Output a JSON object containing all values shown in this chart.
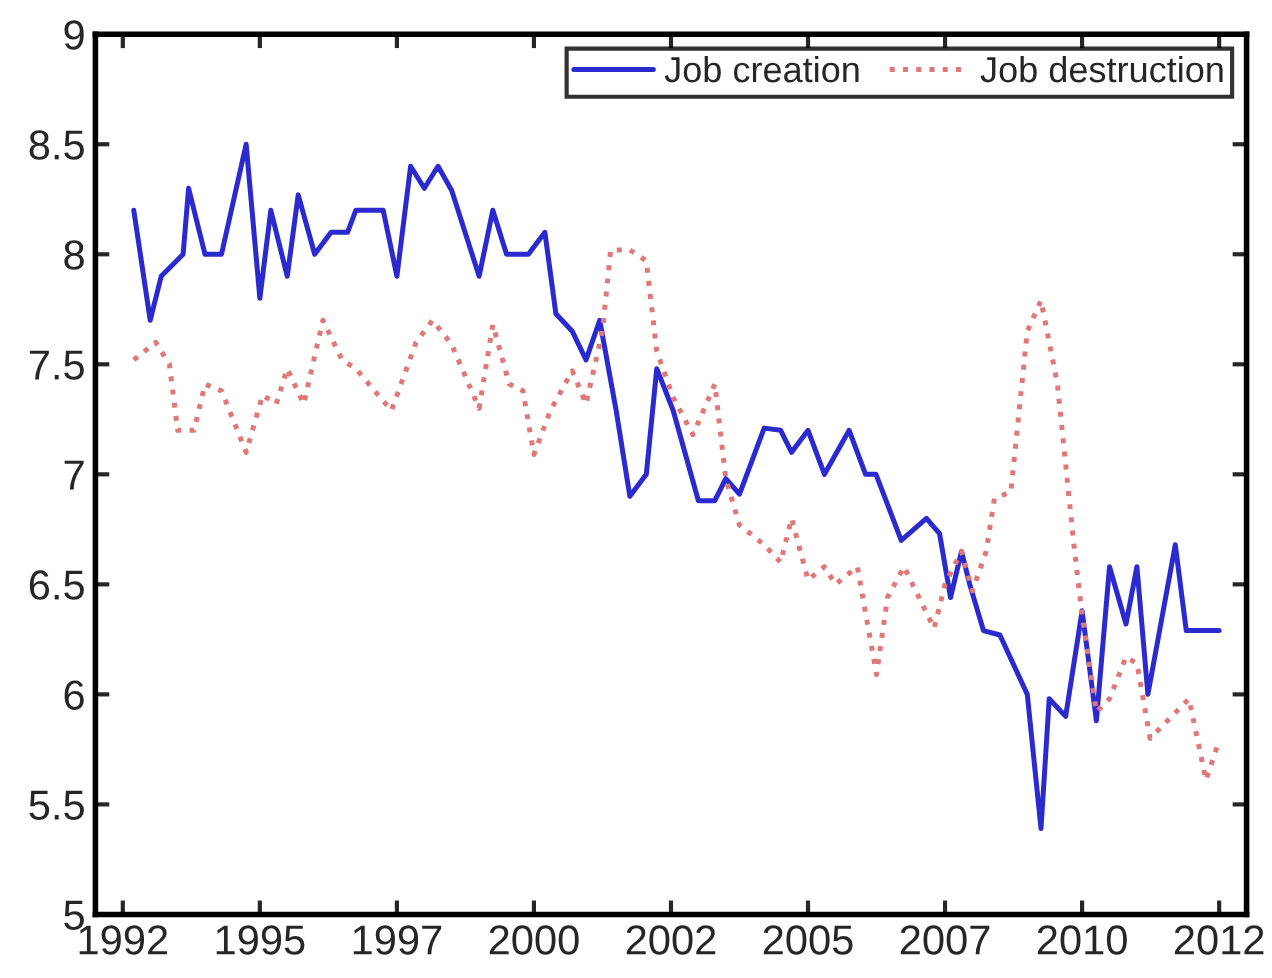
{
  "chart_data": {
    "type": "line",
    "xlim": [
      1991.5,
      2012.5
    ],
    "ylim": [
      5,
      9
    ],
    "xticks": [
      1992,
      {
        "value": 1994.5,
        "label": "1995"
      },
      1997,
      {
        "value": 1999.5,
        "label": "2000"
      },
      2002,
      {
        "value": 2004.5,
        "label": "2005"
      },
      2007,
      {
        "value": 2009.5,
        "label": "2010"
      },
      2012
    ],
    "yticks": [
      5,
      5.5,
      6,
      6.5,
      7,
      7.5,
      8,
      8.5,
      9
    ],
    "grid": false,
    "legend": "top right",
    "series": [
      {
        "name": "Job creation",
        "color": "#2a2ad0",
        "line_style": "solid",
        "x": [
          1992.2,
          1992.5,
          1992.7,
          1993.1,
          1993.2,
          1993.5,
          1993.8,
          1994.25,
          1994.5,
          1994.7,
          1995.0,
          1995.2,
          1995.5,
          1995.8,
          1996.1,
          1996.25,
          1996.75,
          1997.0,
          1997.25,
          1997.5,
          1997.75,
          1998.0,
          1998.5,
          1998.75,
          1999.0,
          1999.4,
          1999.7,
          1999.9,
          2000.2,
          2000.45,
          2000.7,
          2001.0,
          2001.25,
          2001.55,
          2001.74,
          2002.04,
          2002.5,
          2002.8,
          2003.0,
          2003.25,
          2003.7,
          2004.0,
          2004.2,
          2004.5,
          2004.8,
          2005.25,
          2005.55,
          2005.74,
          2006.2,
          2006.66,
          2006.9,
          2007.1,
          2007.3,
          2007.45,
          2007.7,
          2008.0,
          2008.5,
          2008.75,
          2008.9,
          2009.2,
          2009.5,
          2009.76,
          2010.0,
          2010.3,
          2010.5,
          2010.7,
          2011.2,
          2011.4,
          2012.0
        ],
        "values": [
          8.2,
          7.7,
          7.9,
          8.0,
          8.3,
          8.0,
          8.0,
          8.5,
          7.8,
          8.2,
          7.9,
          8.27,
          8.0,
          8.1,
          8.1,
          8.2,
          8.2,
          7.9,
          8.4,
          8.3,
          8.4,
          8.29,
          7.9,
          8.2,
          8.0,
          8.0,
          8.1,
          7.73,
          7.65,
          7.52,
          7.7,
          7.29,
          6.9,
          7.0,
          7.48,
          7.29,
          6.88,
          6.88,
          6.98,
          6.91,
          7.21,
          7.2,
          7.1,
          7.2,
          7.0,
          7.2,
          7.0,
          7.0,
          6.7,
          6.8,
          6.73,
          6.44,
          6.65,
          6.5,
          6.29,
          6.27,
          6.0,
          5.39,
          5.98,
          5.9,
          6.38,
          5.88,
          6.58,
          6.32,
          6.58,
          6.0,
          6.68,
          6.29,
          6.29
        ]
      },
      {
        "name": "Job destruction",
        "color": "#e07878",
        "line_style": "dotted",
        "x": [
          1992.2,
          1992.6,
          1992.85,
          1993.0,
          1993.3,
          1993.5,
          1993.8,
          1994.25,
          1994.55,
          1994.8,
          1995.0,
          1995.3,
          1995.65,
          1996.0,
          1996.25,
          1996.9,
          1997.35,
          1997.65,
          1998.0,
          1998.5,
          1998.75,
          1999.05,
          1999.3,
          1999.5,
          1999.8,
          2000.2,
          2000.45,
          2000.75,
          2000.9,
          2001.25,
          2001.55,
          2001.74,
          2002.04,
          2002.4,
          2002.8,
          2003.0,
          2003.25,
          2003.7,
          2004.0,
          2004.2,
          2004.5,
          2004.8,
          2005.0,
          2005.4,
          2005.75,
          2005.95,
          2006.25,
          2006.8,
          2007.0,
          2007.3,
          2007.5,
          2007.75,
          2007.9,
          2008.2,
          2008.5,
          2008.75,
          2009.05,
          2009.35,
          2009.5,
          2009.76,
          2010.0,
          2010.3,
          2010.5,
          2010.74,
          2011.45,
          2011.76,
          2012.0
        ],
        "values": [
          7.52,
          7.6,
          7.5,
          7.2,
          7.2,
          7.41,
          7.38,
          7.1,
          7.36,
          7.32,
          7.48,
          7.32,
          7.7,
          7.52,
          7.48,
          7.29,
          7.6,
          7.7,
          7.59,
          7.3,
          7.68,
          7.41,
          7.38,
          7.09,
          7.29,
          7.47,
          7.32,
          7.65,
          8.02,
          8.02,
          7.97,
          7.56,
          7.35,
          7.18,
          7.41,
          6.98,
          6.77,
          6.68,
          6.6,
          6.8,
          6.52,
          6.58,
          6.5,
          6.58,
          6.09,
          6.44,
          6.58,
          6.3,
          6.5,
          6.65,
          6.47,
          6.65,
          6.89,
          6.92,
          7.65,
          7.79,
          7.41,
          6.68,
          6.36,
          5.92,
          5.98,
          6.17,
          6.14,
          5.8,
          5.98,
          5.61,
          5.79
        ]
      }
    ]
  }
}
